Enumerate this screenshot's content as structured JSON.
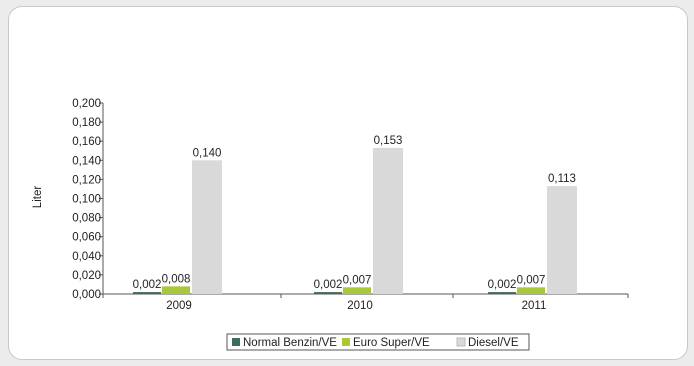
{
  "chart_data": {
    "type": "bar",
    "categories": [
      "2009",
      "2010",
      "2011"
    ],
    "series": [
      {
        "name": "Normal Benzin/VE",
        "values": [
          0.002,
          0.002,
          0.002
        ],
        "labels": [
          "0,002",
          "0,002",
          "0,002"
        ],
        "color": "#3d6b5c"
      },
      {
        "name": "Euro Super/VE",
        "values": [
          0.008,
          0.007,
          0.007
        ],
        "labels": [
          "0,008",
          "0,007",
          "0,007"
        ],
        "color": "#a8c83c"
      },
      {
        "name": "Diesel/VE",
        "values": [
          0.14,
          0.153,
          0.113
        ],
        "labels": [
          "0,140",
          "0,153",
          "0,113"
        ],
        "color": "#d9d9d9"
      }
    ],
    "ylabel": "Liter",
    "xlabel": "",
    "ylim": [
      0,
      0.2
    ],
    "yticks": [
      0,
      0.02,
      0.04,
      0.06,
      0.08,
      0.1,
      0.12,
      0.14,
      0.16,
      0.18,
      0.2
    ],
    "ytick_labels": [
      "0,000",
      "0,020",
      "0,040",
      "0,060",
      "0,080",
      "0,100",
      "0,120",
      "0,140",
      "0,160",
      "0,180",
      "0,200"
    ],
    "grid": false,
    "legend": "bottom"
  }
}
